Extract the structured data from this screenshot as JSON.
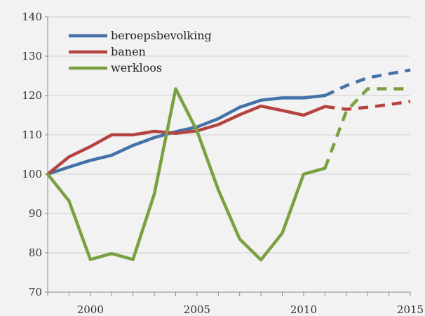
{
  "chart_data": {
    "type": "line",
    "title": "",
    "xlabel": "",
    "ylabel": "",
    "xlim": [
      1998,
      2015
    ],
    "ylim": [
      70,
      140
    ],
    "x_ticks": [
      2000,
      2005,
      2010,
      2015
    ],
    "y_ticks": [
      70,
      80,
      90,
      100,
      110,
      120,
      130,
      140
    ],
    "grid": "horizontal",
    "legend_position": "top-left",
    "series": [
      {
        "name": "beroepsbevolking",
        "color": "#4472a8",
        "solid": {
          "x": [
            1998,
            1999,
            2000,
            2001,
            2002,
            2003,
            2004,
            2005,
            2006,
            2007,
            2008,
            2009,
            2010,
            2011
          ],
          "y": [
            100,
            101.8,
            103.5,
            104.8,
            107.3,
            109.3,
            110.8,
            112,
            114.1,
            117,
            118.8,
            119.4,
            119.4,
            120
          ]
        },
        "dashed": {
          "x": [
            2011,
            2012,
            2013,
            2014,
            2015
          ],
          "y": [
            120,
            122.5,
            124.5,
            125.5,
            126.5
          ]
        }
      },
      {
        "name": "banen",
        "color": "#b54440",
        "solid": {
          "x": [
            1998,
            1999,
            2000,
            2001,
            2002,
            2003,
            2004,
            2005,
            2006,
            2007,
            2008,
            2009,
            2010,
            2011
          ],
          "y": [
            100,
            104.4,
            107,
            110,
            110,
            110.9,
            110.4,
            111,
            112.6,
            115.1,
            117.3,
            116.2,
            115,
            117.2
          ]
        },
        "dashed": {
          "x": [
            2011,
            2012,
            2013,
            2014,
            2015
          ],
          "y": [
            117.2,
            116.5,
            117,
            117.7,
            118.5
          ]
        }
      },
      {
        "name": "werkloos",
        "color": "#7aa03f",
        "solid": {
          "x": [
            1998,
            1999,
            2000,
            2001,
            2002,
            2003,
            2004,
            2005,
            2006,
            2007,
            2008,
            2009,
            2010,
            2011
          ],
          "y": [
            100,
            93.2,
            78.3,
            79.8,
            78.3,
            95,
            121.7,
            111,
            96,
            83.5,
            78.2,
            85,
            100,
            101.5
          ]
        },
        "dashed": {
          "x": [
            2011,
            2012,
            2013,
            2014,
            2015
          ],
          "y": [
            101.5,
            116,
            121.7,
            121.7,
            121.7
          ]
        }
      }
    ]
  }
}
